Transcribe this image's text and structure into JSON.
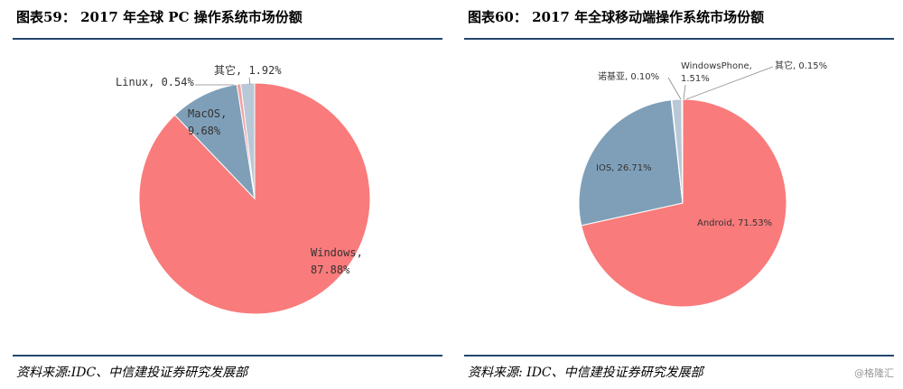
{
  "figures": [
    {
      "title": "图表59： 2017 年全球 PC 操作系统市场份额",
      "source": "资料来源:IDC、中信建投证券研究发展部"
    },
    {
      "title": "图表60： 2017 年全球移动端操作系统市场份额",
      "source": "资料来源: IDC、中信建投证券研究发展部"
    }
  ],
  "watermark": "@格隆汇",
  "chart_data": [
    {
      "type": "pie",
      "slices": [
        {
          "label": "Windows",
          "value": 87.88,
          "display": [
            "Windows,",
            "87.88%"
          ],
          "color": "#f97b7b"
        },
        {
          "label": "MacOS",
          "value": 9.68,
          "display": [
            "MacOS,",
            "9.68%"
          ],
          "color": "#7f9fb8"
        },
        {
          "label": "Linux",
          "value": 0.54,
          "display": [
            "Linux, 0.54%"
          ],
          "color": "#f2a0a0"
        },
        {
          "label": "其它",
          "value": 1.92,
          "display": [
            "其它, 1.92%"
          ],
          "color": "#b9c8d6"
        }
      ]
    },
    {
      "type": "pie",
      "slices": [
        {
          "label": "Android",
          "value": 71.53,
          "display": [
            "Android, 71.53%"
          ],
          "color": "#f97b7b"
        },
        {
          "label": "IOS",
          "value": 26.71,
          "display": [
            "IOS, 26.71%"
          ],
          "color": "#7f9fb8"
        },
        {
          "label": "诺基亚",
          "value": 0.1,
          "display": [
            "诺基亚, 0.10%"
          ],
          "color": "#f2a0a0"
        },
        {
          "label": "WindowsPhone",
          "value": 1.51,
          "display": [
            "WindowsPhone,",
            "1.51%"
          ],
          "color": "#b9c8d6"
        },
        {
          "label": "其它",
          "value": 0.15,
          "display": [
            "其它, 0.15%"
          ],
          "color": "#e6b2b2"
        }
      ]
    }
  ]
}
